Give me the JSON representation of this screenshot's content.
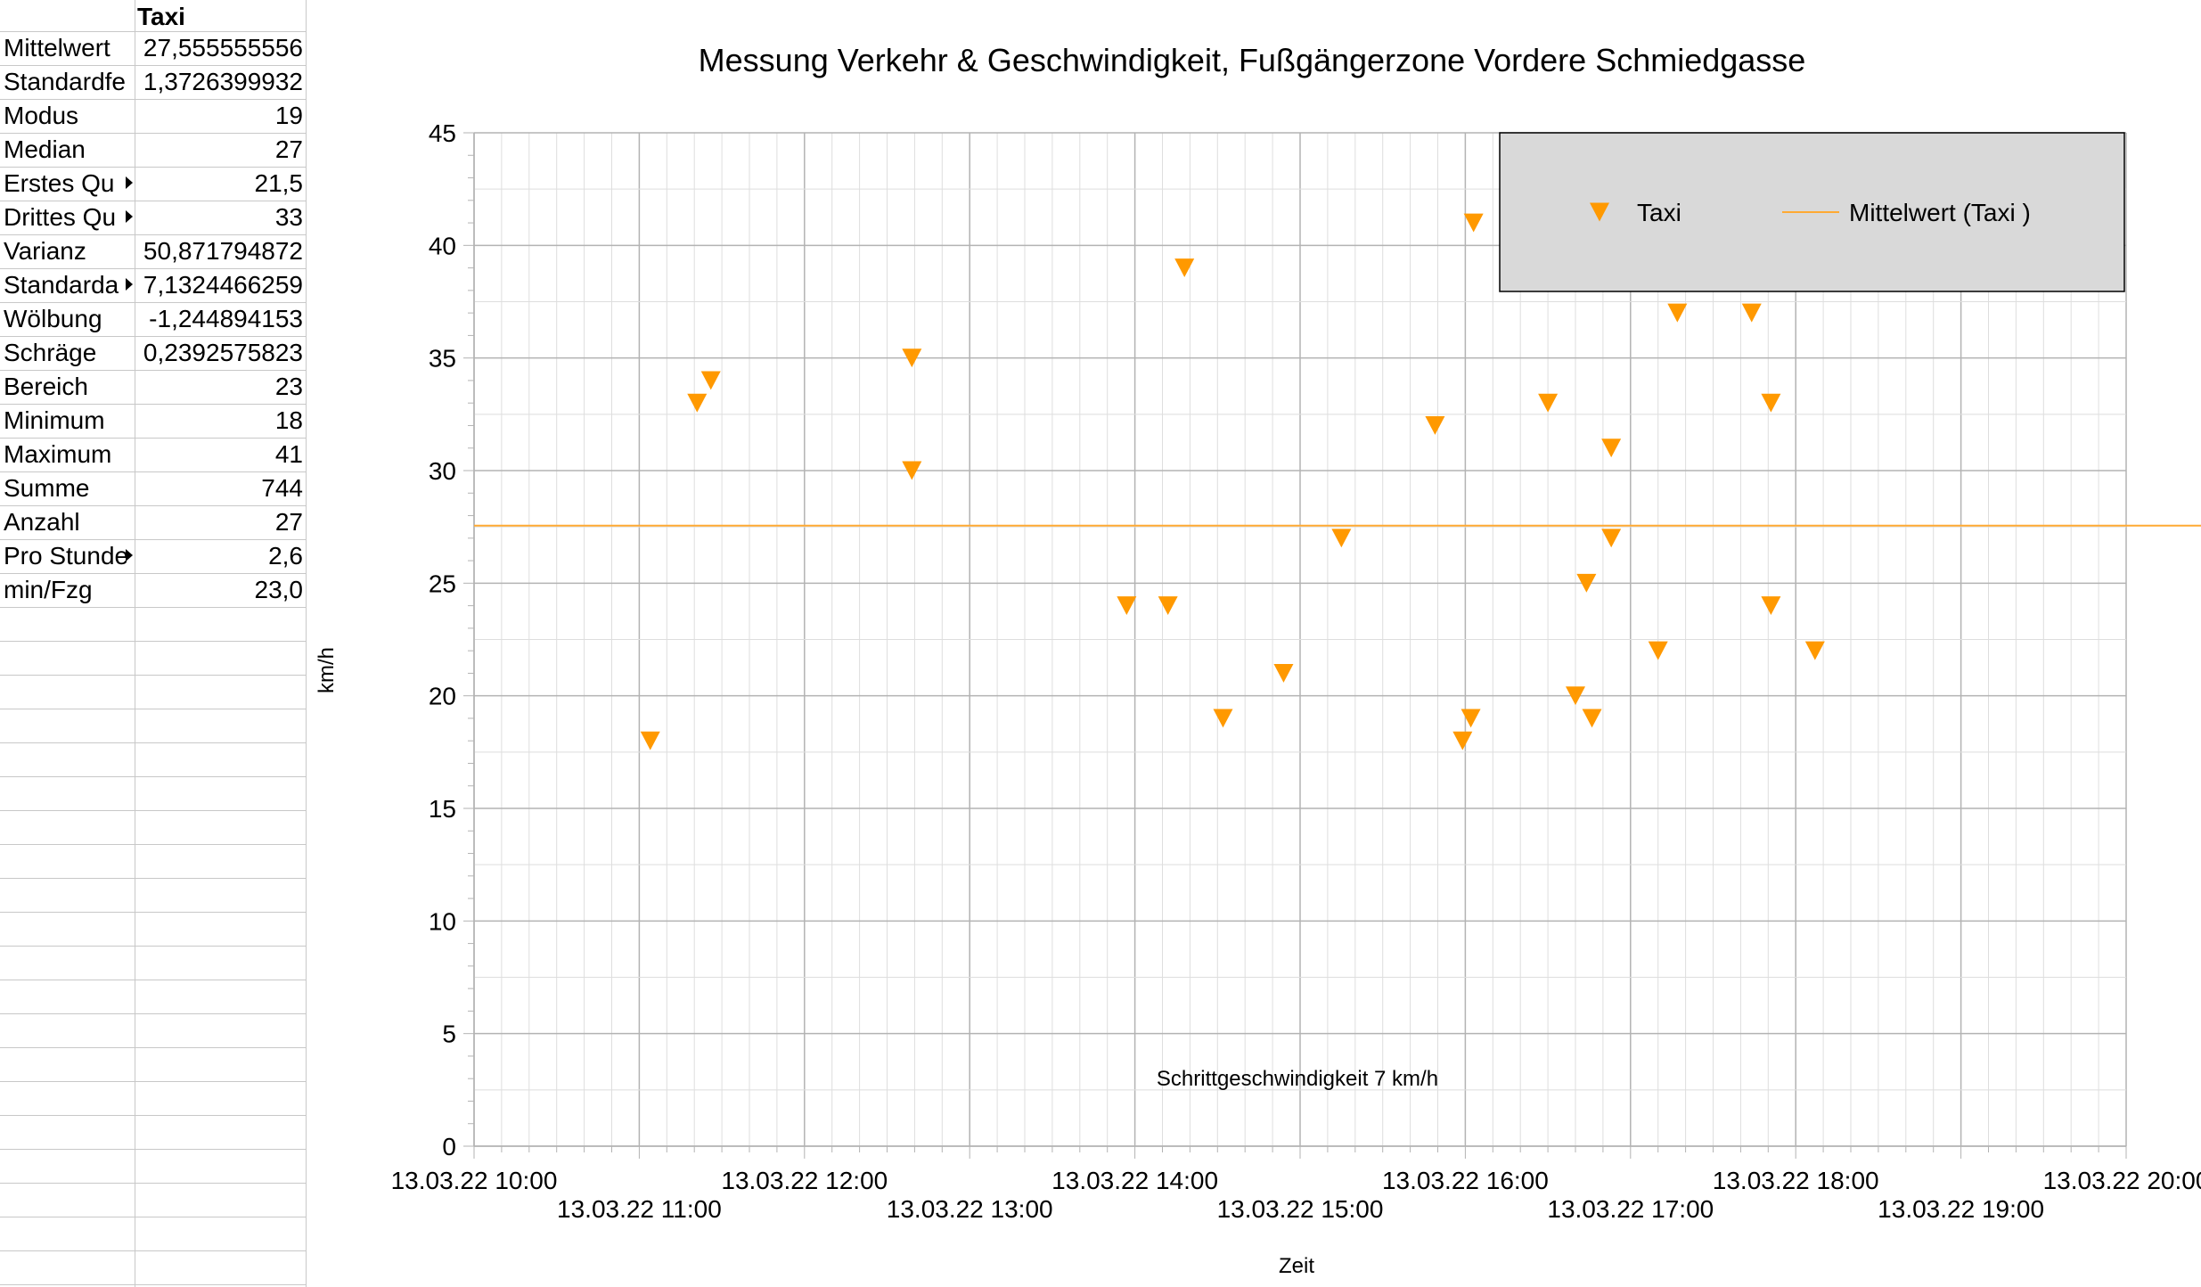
{
  "sheet": {
    "header": "Taxi",
    "rows": [
      {
        "label": "Mittelwert",
        "value": "27,555555556",
        "truncated": false
      },
      {
        "label": "Standardfe",
        "value": "1,3726399932",
        "truncated": false
      },
      {
        "label": "Modus",
        "value": "19",
        "truncated": false
      },
      {
        "label": "Median",
        "value": "27",
        "truncated": false
      },
      {
        "label": "Erstes Qu",
        "value": "21,5",
        "truncated": true
      },
      {
        "label": "Drittes Qu",
        "value": "33",
        "truncated": true
      },
      {
        "label": "Varianz",
        "value": "50,871794872",
        "truncated": false
      },
      {
        "label": "Standarda",
        "value": "7,1324466259",
        "truncated": true
      },
      {
        "label": "Wölbung",
        "value": "-1,244894153",
        "truncated": false
      },
      {
        "label": "Schräge",
        "value": "0,2392575823",
        "truncated": false
      },
      {
        "label": "Bereich",
        "value": "23",
        "truncated": false
      },
      {
        "label": "Minimum",
        "value": "18",
        "truncated": false
      },
      {
        "label": "Maximum",
        "value": "41",
        "truncated": false
      },
      {
        "label": "Summe",
        "value": "744",
        "truncated": false
      },
      {
        "label": "Anzahl",
        "value": "27",
        "truncated": false
      },
      {
        "label": "Pro Stunde",
        "value": "2,6",
        "truncated": true
      },
      {
        "label": "min/Fzg",
        "value": "23,0",
        "truncated": false
      }
    ]
  },
  "chart_data": {
    "type": "scatter",
    "title": "Messung Verkehr & Geschwindigkeit, Fußgängerzone Vordere Schmiedgasse",
    "xlabel": "Zeit",
    "ylabel": "km/h",
    "ylim": [
      0,
      45
    ],
    "yticks": [
      "0",
      "5",
      "10",
      "15",
      "20",
      "25",
      "30",
      "35",
      "40",
      "45"
    ],
    "xlim": [
      "13.03.22 10:00",
      "13.03.22 20:00"
    ],
    "xticks_upper": [
      "13.03.22 10:00",
      "13.03.22 12:00",
      "13.03.22 14:00",
      "13.03.22 16:00",
      "13.03.22 18:00",
      "13.03.22 20:00"
    ],
    "xticks_lower": [
      "13.03.22 11:00",
      "13.03.22 13:00",
      "13.03.22 15:00",
      "13.03.22 17:00",
      "13.03.22 19:00"
    ],
    "annotation": "Schrittgeschwindigkeit 7 km/h",
    "grid": true,
    "legend_position": "top-right",
    "colors": {
      "series": "#ff9900",
      "mean_line": "#ffaa33",
      "legend_bg": "#d9d9d9",
      "grid": "#b3b3b3"
    },
    "series": [
      {
        "name": "Taxi",
        "marker": "triangle-down",
        "points": [
          {
            "x": "13.03.22 11:04",
            "y": 18
          },
          {
            "x": "13.03.22 11:21",
            "y": 33
          },
          {
            "x": "13.03.22 11:26",
            "y": 34
          },
          {
            "x": "13.03.22 12:39",
            "y": 35
          },
          {
            "x": "13.03.22 12:39",
            "y": 30
          },
          {
            "x": "13.03.22 13:57",
            "y": 24
          },
          {
            "x": "13.03.22 14:12",
            "y": 24
          },
          {
            "x": "13.03.22 14:18",
            "y": 39
          },
          {
            "x": "13.03.22 14:32",
            "y": 19
          },
          {
            "x": "13.03.22 14:54",
            "y": 21
          },
          {
            "x": "13.03.22 15:15",
            "y": 27
          },
          {
            "x": "13.03.22 15:49",
            "y": 32
          },
          {
            "x": "13.03.22 15:59",
            "y": 18
          },
          {
            "x": "13.03.22 16:02",
            "y": 19
          },
          {
            "x": "13.03.22 16:03",
            "y": 41
          },
          {
            "x": "13.03.22 16:30",
            "y": 33
          },
          {
            "x": "13.03.22 16:40",
            "y": 20
          },
          {
            "x": "13.03.22 16:44",
            "y": 25
          },
          {
            "x": "13.03.22 16:46",
            "y": 19
          },
          {
            "x": "13.03.22 16:53",
            "y": 31
          },
          {
            "x": "13.03.22 16:53",
            "y": 27
          },
          {
            "x": "13.03.22 17:10",
            "y": 22
          },
          {
            "x": "13.03.22 17:17",
            "y": 37
          },
          {
            "x": "13.03.22 17:44",
            "y": 37
          },
          {
            "x": "13.03.22 17:51",
            "y": 33
          },
          {
            "x": "13.03.22 17:51",
            "y": 24
          },
          {
            "x": "13.03.22 18:07",
            "y": 22
          }
        ]
      },
      {
        "name": "Mittelwert (Taxi  )",
        "type": "line",
        "value": 27.555555556
      }
    ]
  }
}
